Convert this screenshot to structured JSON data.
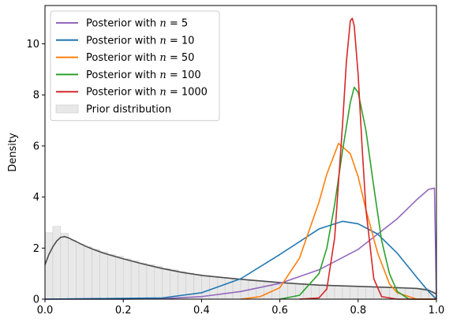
{
  "chart_data": {
    "type": "line",
    "title": "",
    "xlabel": "",
    "ylabel": "Density",
    "xlim": [
      0,
      1
    ],
    "ylim": [
      0,
      11.5
    ],
    "x_ticks": [
      0.0,
      0.2,
      0.4,
      0.6,
      0.8,
      1.0
    ],
    "x_tick_labels": [
      "0.0",
      "0.2",
      "0.4",
      "0.6",
      "0.8",
      "1.0"
    ],
    "y_ticks": [
      0,
      2,
      4,
      6,
      8,
      10
    ],
    "y_tick_labels": [
      "0",
      "2",
      "4",
      "6",
      "8",
      "10"
    ],
    "grid": false,
    "legend_position": "upper-left",
    "series": [
      {
        "name": "Posterior with n = 5",
        "label_prefix": "Posterior with ",
        "label_var": "n",
        "label_value": " = 5",
        "color": "#9467bd",
        "x": [
          0.0,
          0.2,
          0.3,
          0.4,
          0.5,
          0.6,
          0.7,
          0.8,
          0.9,
          0.95,
          0.98,
          0.995,
          1.0
        ],
        "y": [
          0.0,
          0.0,
          0.02,
          0.1,
          0.3,
          0.62,
          1.15,
          1.95,
          3.15,
          3.9,
          4.3,
          4.35,
          0.0
        ]
      },
      {
        "name": "Posterior with n = 10",
        "label_prefix": "Posterior with ",
        "label_var": "n",
        "label_value": " = 10",
        "color": "#1f77b4",
        "x": [
          0.0,
          0.3,
          0.4,
          0.5,
          0.6,
          0.7,
          0.76,
          0.8,
          0.85,
          0.9,
          0.95,
          0.98,
          1.0
        ],
        "y": [
          0.0,
          0.05,
          0.25,
          0.8,
          1.75,
          2.75,
          3.05,
          2.95,
          2.55,
          1.8,
          0.85,
          0.3,
          0.0
        ]
      },
      {
        "name": "Posterior with n = 50",
        "label_prefix": "Posterior with ",
        "label_var": "n",
        "label_value": " = 50",
        "color": "#ff7f0e",
        "x": [
          0.5,
          0.55,
          0.6,
          0.65,
          0.7,
          0.72,
          0.75,
          0.78,
          0.8,
          0.82,
          0.85,
          0.88,
          0.9,
          0.95,
          1.0
        ],
        "y": [
          0.0,
          0.1,
          0.45,
          1.6,
          3.8,
          4.9,
          6.1,
          5.7,
          4.8,
          3.5,
          1.8,
          0.6,
          0.25,
          0.0,
          0.0
        ]
      },
      {
        "name": "Posterior with n = 100",
        "label_prefix": "Posterior with ",
        "label_var": "n",
        "label_value": " = 100",
        "color": "#2ca02c",
        "x": [
          0.6,
          0.65,
          0.7,
          0.72,
          0.74,
          0.76,
          0.78,
          0.79,
          0.8,
          0.82,
          0.84,
          0.86,
          0.88,
          0.9,
          0.93,
          1.0
        ],
        "y": [
          0.0,
          0.15,
          1.0,
          2.0,
          3.7,
          5.8,
          7.7,
          8.3,
          8.1,
          6.6,
          4.4,
          2.3,
          1.0,
          0.3,
          0.0,
          0.0
        ]
      },
      {
        "name": "Posterior with n = 1000",
        "label_prefix": "Posterior with ",
        "label_var": "n",
        "label_value": " = 1000",
        "color": "#d62728",
        "x": [
          0.65,
          0.7,
          0.72,
          0.74,
          0.76,
          0.77,
          0.78,
          0.785,
          0.79,
          0.8,
          0.81,
          0.82,
          0.84,
          0.86,
          0.9,
          1.0
        ],
        "y": [
          0.0,
          0.05,
          0.4,
          2.4,
          6.8,
          9.3,
          10.9,
          11.0,
          10.7,
          8.8,
          6.0,
          3.5,
          0.8,
          0.1,
          0.0,
          0.0
        ]
      }
    ],
    "prior_density": {
      "color": "#4d4d4d",
      "x": [
        0.0,
        0.01,
        0.02,
        0.03,
        0.04,
        0.05,
        0.06,
        0.08,
        0.1,
        0.12,
        0.15,
        0.2,
        0.25,
        0.3,
        0.35,
        0.4,
        0.5,
        0.6,
        0.7,
        0.8,
        0.9,
        0.95,
        0.98,
        1.0
      ],
      "y": [
        1.35,
        1.75,
        2.05,
        2.28,
        2.42,
        2.45,
        2.4,
        2.25,
        2.1,
        1.97,
        1.8,
        1.58,
        1.38,
        1.2,
        1.05,
        0.93,
        0.78,
        0.65,
        0.55,
        0.5,
        0.45,
        0.42,
        0.35,
        0.2
      ]
    },
    "prior_histogram": {
      "name": "Prior distribution",
      "color": "#e8e8e8",
      "edge_color": "#c8c8c8",
      "bin_width": 0.02,
      "bin_starts": [
        0.0,
        0.02,
        0.04,
        0.06,
        0.08,
        0.1,
        0.12,
        0.14,
        0.16,
        0.18,
        0.2,
        0.22,
        0.24,
        0.26,
        0.28,
        0.3,
        0.32,
        0.34,
        0.36,
        0.38,
        0.4,
        0.42,
        0.44,
        0.46,
        0.48,
        0.5,
        0.52,
        0.54,
        0.56,
        0.58,
        0.6,
        0.62,
        0.64,
        0.66,
        0.68,
        0.7,
        0.72,
        0.74,
        0.76,
        0.78,
        0.8,
        0.82,
        0.84,
        0.86,
        0.88,
        0.9,
        0.92,
        0.94,
        0.96,
        0.98
      ],
      "heights": [
        2.6,
        2.85,
        2.58,
        2.3,
        2.15,
        2.05,
        1.95,
        1.85,
        1.75,
        1.68,
        1.58,
        1.5,
        1.42,
        1.35,
        1.28,
        1.2,
        1.15,
        1.08,
        1.02,
        0.97,
        0.93,
        0.89,
        0.85,
        0.81,
        0.78,
        0.76,
        0.72,
        0.7,
        0.67,
        0.65,
        0.63,
        0.61,
        0.59,
        0.57,
        0.56,
        0.55,
        0.54,
        0.53,
        0.52,
        0.51,
        0.5,
        0.49,
        0.48,
        0.47,
        0.46,
        0.45,
        0.44,
        0.43,
        0.42,
        0.3
      ]
    }
  }
}
